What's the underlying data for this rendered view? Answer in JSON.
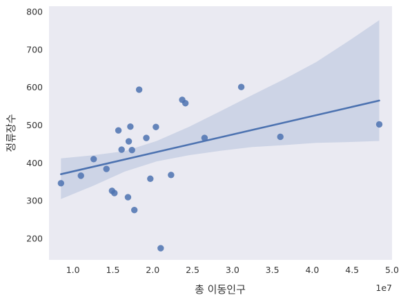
{
  "chart_data": {
    "type": "scatter",
    "title": "",
    "xlabel": "총 이동인구",
    "ylabel": "정류장수",
    "x_offset_label": "1e7",
    "xlim": [
      0.7,
      5.0
    ],
    "ylim": [
      143,
      815
    ],
    "x_ticks": [
      1.0,
      1.5,
      2.0,
      2.5,
      3.0,
      3.5,
      4.0,
      4.5,
      5.0
    ],
    "x_tick_labels": [
      "1.0",
      "1.5",
      "2.0",
      "2.5",
      "3.0",
      "3.5",
      "4.0",
      "4.5",
      "5.0"
    ],
    "y_ticks": [
      200,
      300,
      400,
      500,
      600,
      700,
      800
    ],
    "y_tick_labels": [
      "200",
      "300",
      "400",
      "500",
      "600",
      "700",
      "800"
    ],
    "grid": false,
    "colors": {
      "background": "#eaeaf2",
      "points": "#4c72b0",
      "band": "#b9c3dc"
    },
    "points": [
      {
        "x": 0.85,
        "y": 346
      },
      {
        "x": 1.1,
        "y": 366
      },
      {
        "x": 1.26,
        "y": 410
      },
      {
        "x": 1.42,
        "y": 384
      },
      {
        "x": 1.49,
        "y": 326
      },
      {
        "x": 1.52,
        "y": 320
      },
      {
        "x": 1.57,
        "y": 486
      },
      {
        "x": 1.61,
        "y": 435
      },
      {
        "x": 1.69,
        "y": 309
      },
      {
        "x": 1.7,
        "y": 457
      },
      {
        "x": 1.72,
        "y": 496
      },
      {
        "x": 1.74,
        "y": 434
      },
      {
        "x": 1.77,
        "y": 275
      },
      {
        "x": 1.83,
        "y": 594
      },
      {
        "x": 1.92,
        "y": 466
      },
      {
        "x": 1.97,
        "y": 358
      },
      {
        "x": 2.04,
        "y": 495
      },
      {
        "x": 2.1,
        "y": 174
      },
      {
        "x": 2.23,
        "y": 368
      },
      {
        "x": 2.37,
        "y": 567
      },
      {
        "x": 2.41,
        "y": 558
      },
      {
        "x": 2.65,
        "y": 466
      },
      {
        "x": 3.11,
        "y": 601
      },
      {
        "x": 3.6,
        "y": 469
      },
      {
        "x": 4.84,
        "y": 502
      }
    ],
    "regression": {
      "x": [
        0.85,
        4.84
      ],
      "y": [
        370,
        565
      ]
    },
    "confidence_band": {
      "x": [
        0.85,
        1.25,
        1.65,
        2.05,
        2.45,
        2.85,
        3.25,
        3.65,
        4.05,
        4.45,
        4.84
      ],
      "upper": [
        412,
        420,
        431,
        458,
        495,
        537,
        580,
        622,
        667,
        722,
        778
      ],
      "lower": [
        304,
        339,
        377,
        404,
        420,
        432,
        442,
        447,
        453,
        455,
        458
      ]
    }
  }
}
